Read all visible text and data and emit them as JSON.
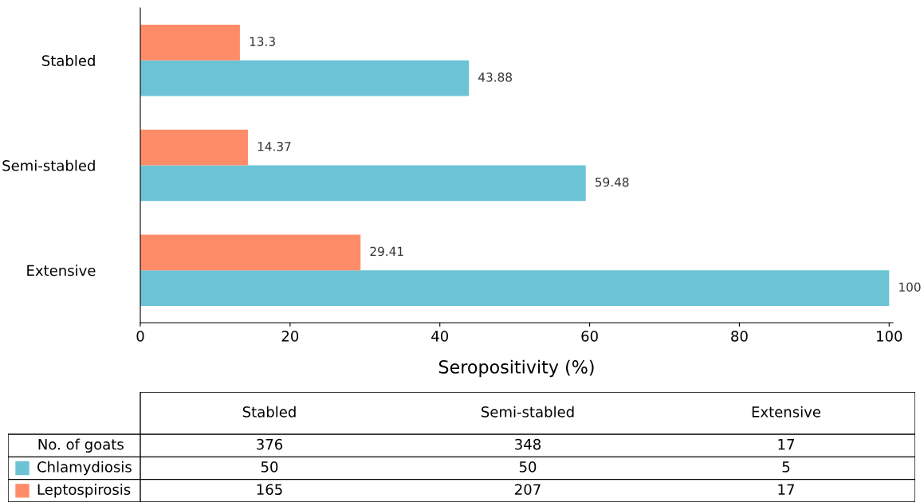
{
  "chart_data": [
    {
      "type": "bar",
      "orientation": "horizontal",
      "xlabel": "Seropositivity (%)",
      "categories": [
        "Stabled",
        "Semi-stabled",
        "Extensive"
      ],
      "series": [
        {
          "color": "#6cc3d5",
          "values": [
            43.88,
            59.48,
            100
          ]
        },
        {
          "color": "#ff8c69",
          "values": [
            13.3,
            14.37,
            29.41
          ]
        }
      ],
      "xlim": [
        0,
        100.5
      ],
      "xticks": [
        0,
        20,
        40,
        60,
        80,
        100
      ],
      "data_labels": true,
      "grid": false,
      "legend": false
    },
    {
      "type": "other",
      "categories": [
        "Stabled",
        "Semi-stabled",
        "Extensive"
      ],
      "series": [
        {
          "name": "No. of goats",
          "values": [
            376,
            348,
            17
          ]
        },
        {
          "name": "Chlamydiosis",
          "color": "#6cc3d5",
          "values": [
            50,
            50,
            5
          ]
        },
        {
          "name": "Leptospirosis",
          "color": "#ff8c69",
          "values": [
            165,
            207,
            17
          ]
        }
      ],
      "data_labels": true
    }
  ]
}
